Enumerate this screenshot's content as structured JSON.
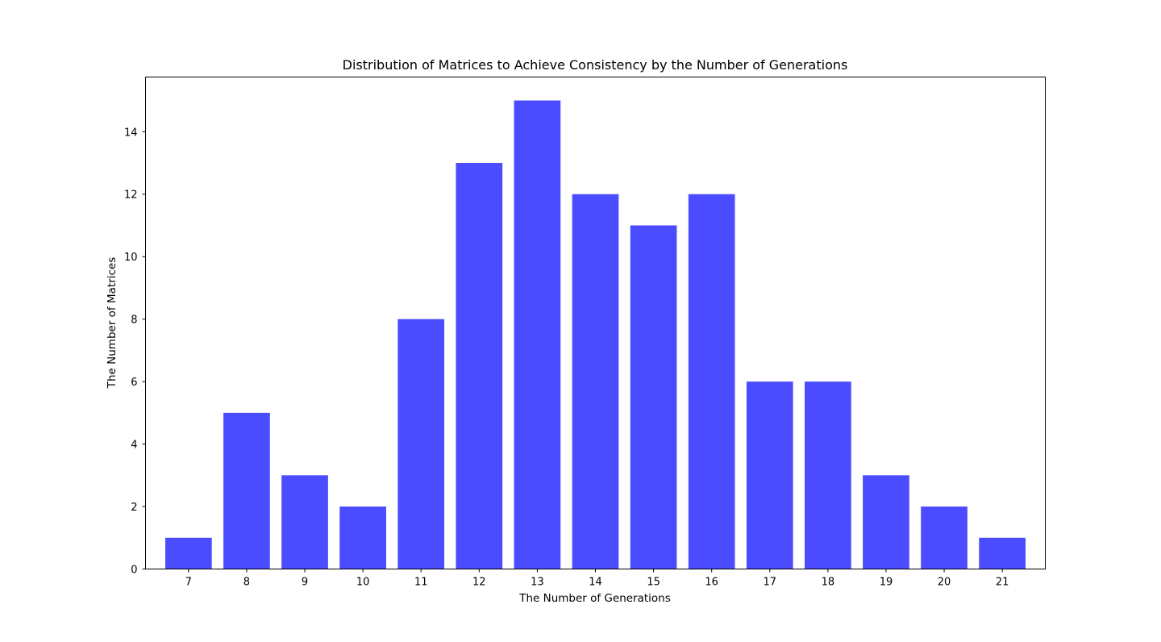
{
  "chart_data": {
    "type": "bar",
    "title": "Distribution of Matrices to Achieve Consistency by the Number of Generations",
    "xlabel": "The Number of Generations",
    "ylabel": "The Number of Matrices",
    "categories": [
      "7",
      "8",
      "9",
      "10",
      "11",
      "12",
      "13",
      "14",
      "15",
      "16",
      "17",
      "18",
      "19",
      "20",
      "21"
    ],
    "values": [
      1,
      5,
      3,
      2,
      8,
      13,
      15,
      12,
      11,
      12,
      6,
      6,
      3,
      2,
      1
    ],
    "xlim": [
      6.26,
      21.74
    ],
    "ylim": [
      0,
      15.75
    ],
    "yticks": [
      0,
      2,
      4,
      6,
      8,
      10,
      12,
      14
    ],
    "bar_color": "#4b4bff",
    "grid": false,
    "legend": "none"
  }
}
